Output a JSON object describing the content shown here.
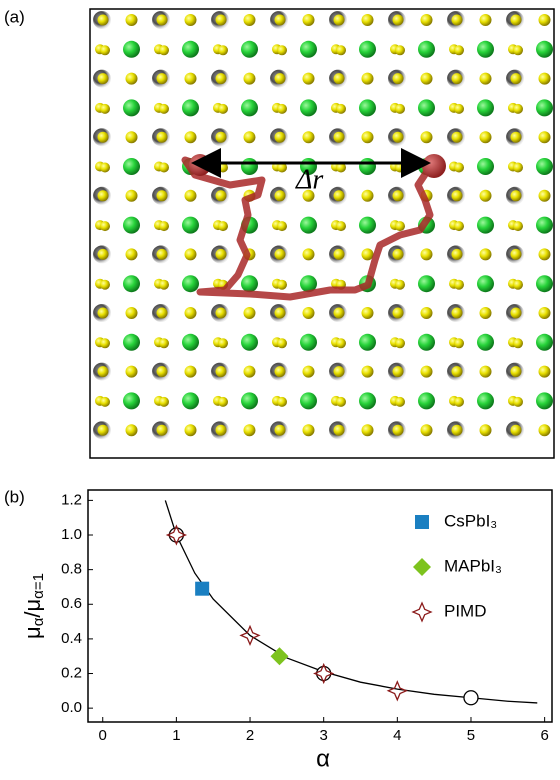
{
  "panel_a": {
    "label": "(a)",
    "annotation": "Δr"
  },
  "chart_data": {
    "type": "scatter",
    "panel_label": "(b)",
    "xlabel": "α",
    "ylabel": [
      "μ",
      "α",
      "/μ",
      "α=1"
    ],
    "xlim": [
      -0.2,
      6.1
    ],
    "ylim": [
      -0.08,
      1.26
    ],
    "xticks": [
      0,
      1,
      2,
      3,
      4,
      5,
      6
    ],
    "yticks": [
      {
        "value": 0,
        "label": "0.0"
      },
      0.2,
      0.4,
      0.6,
      0.8,
      {
        "value": 1,
        "label": "1.0"
      },
      1.2
    ],
    "legend": "upper right",
    "series": [
      {
        "marker": "line",
        "color": "#000000",
        "x": [
          0.85,
          1,
          1.25,
          1.5,
          2,
          2.5,
          3,
          3.5,
          4,
          4.5,
          5,
          5.5,
          5.9
        ],
        "values": [
          1.2,
          1.0,
          0.78,
          0.63,
          0.42,
          0.29,
          0.21,
          0.15,
          0.11,
          0.08,
          0.06,
          0.04,
          0.03
        ]
      },
      {
        "marker": "circle-open",
        "color": "#000000",
        "x": [
          1,
          3,
          5
        ],
        "values": [
          1.0,
          0.2,
          0.06
        ]
      },
      {
        "name": "CsPbI₃",
        "marker": "square",
        "color": "#1a7fc1",
        "x": [
          1.35
        ],
        "values": [
          0.69
        ]
      },
      {
        "name": "MAPbI₃",
        "marker": "diamond",
        "color": "#7dc31e",
        "x": [
          2.4
        ],
        "values": [
          0.3
        ]
      },
      {
        "name": "PIMD",
        "marker": "star-open",
        "color": "#8b1a1a",
        "x": [
          1,
          2,
          3,
          4
        ],
        "values": [
          1.0,
          0.42,
          0.2,
          0.1
        ]
      }
    ]
  }
}
